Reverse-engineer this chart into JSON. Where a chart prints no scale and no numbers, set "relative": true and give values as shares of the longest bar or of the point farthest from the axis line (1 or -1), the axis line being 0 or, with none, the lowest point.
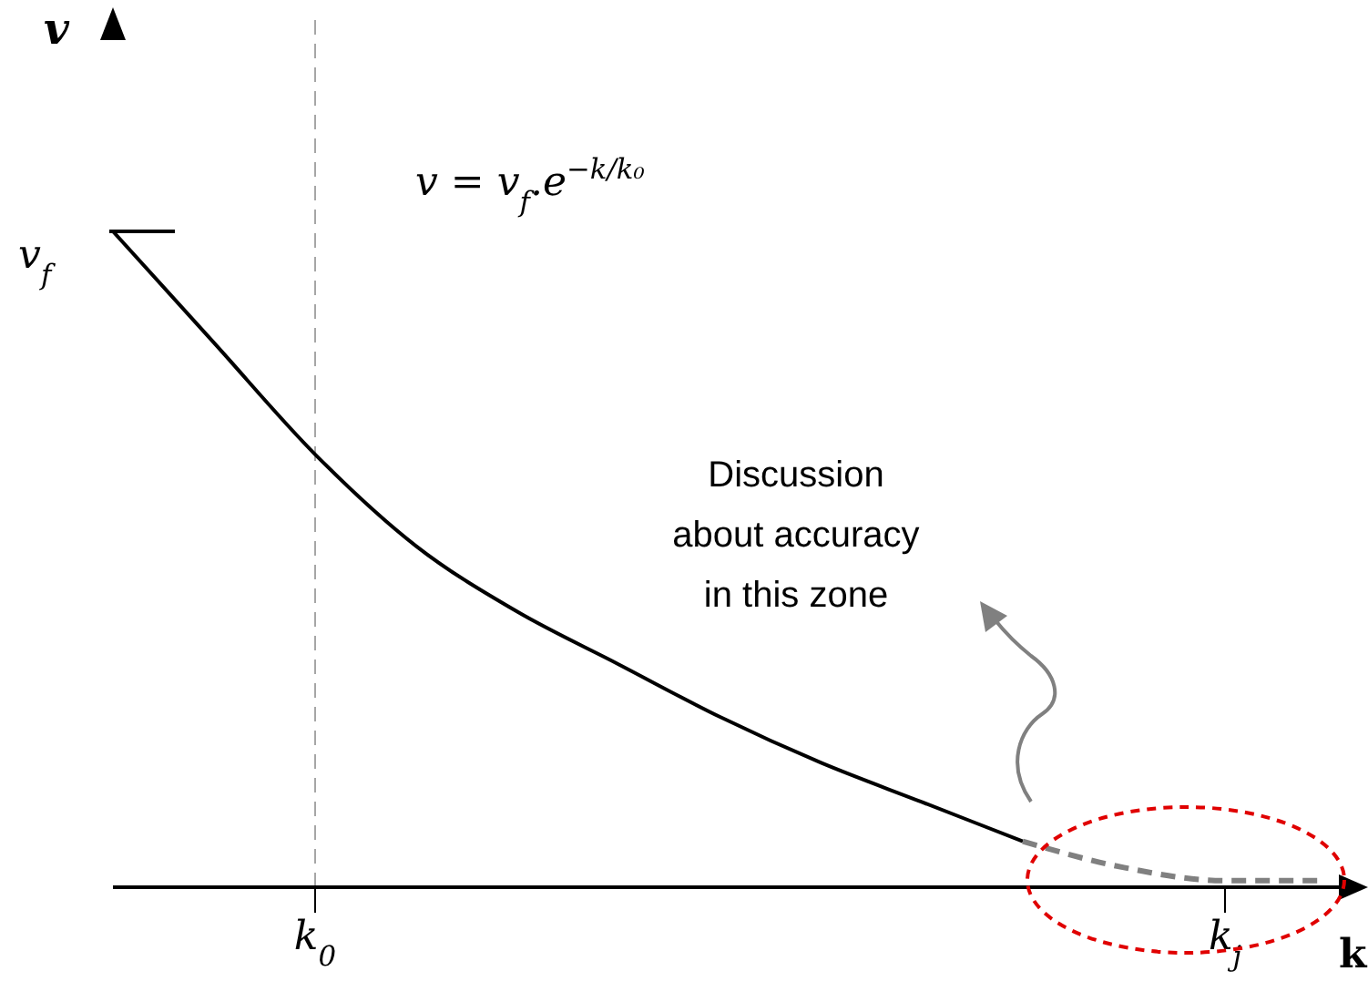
{
  "chart_data": {
    "type": "line",
    "relative": true,
    "xlabel": "k",
    "ylabel": "v",
    "categories": [
      null,
      null,
      "k$_{0}$",
      null,
      null,
      null,
      null,
      null,
      null,
      null,
      null,
      "k$_{j}$",
      null
    ],
    "series": [
      {
        "color": "#000000",
        "line_style": "solid",
        "values": [
          1,
          0.83,
          0.66,
          0.52,
          0.42,
          0.34,
          0.26,
          0.19,
          0.13,
          0.07,
          null,
          null,
          null
        ]
      },
      {
        "color": "#808080",
        "line_style": "dashed",
        "values": [
          null,
          null,
          null,
          null,
          null,
          null,
          null,
          null,
          null,
          0.07,
          0.03,
          0.01,
          0.01
        ]
      }
    ],
    "ref_lines": [
      {
        "axis": "x",
        "value": "k$_{0}$",
        "color": "#a6a6a6",
        "line_style": "dashed"
      }
    ],
    "annotations": [
      "v = v$_{f}$.e$^{−k/k₀}$",
      "v$_{f}$",
      "Discussion about accuracy in this zone"
    ]
  }
}
